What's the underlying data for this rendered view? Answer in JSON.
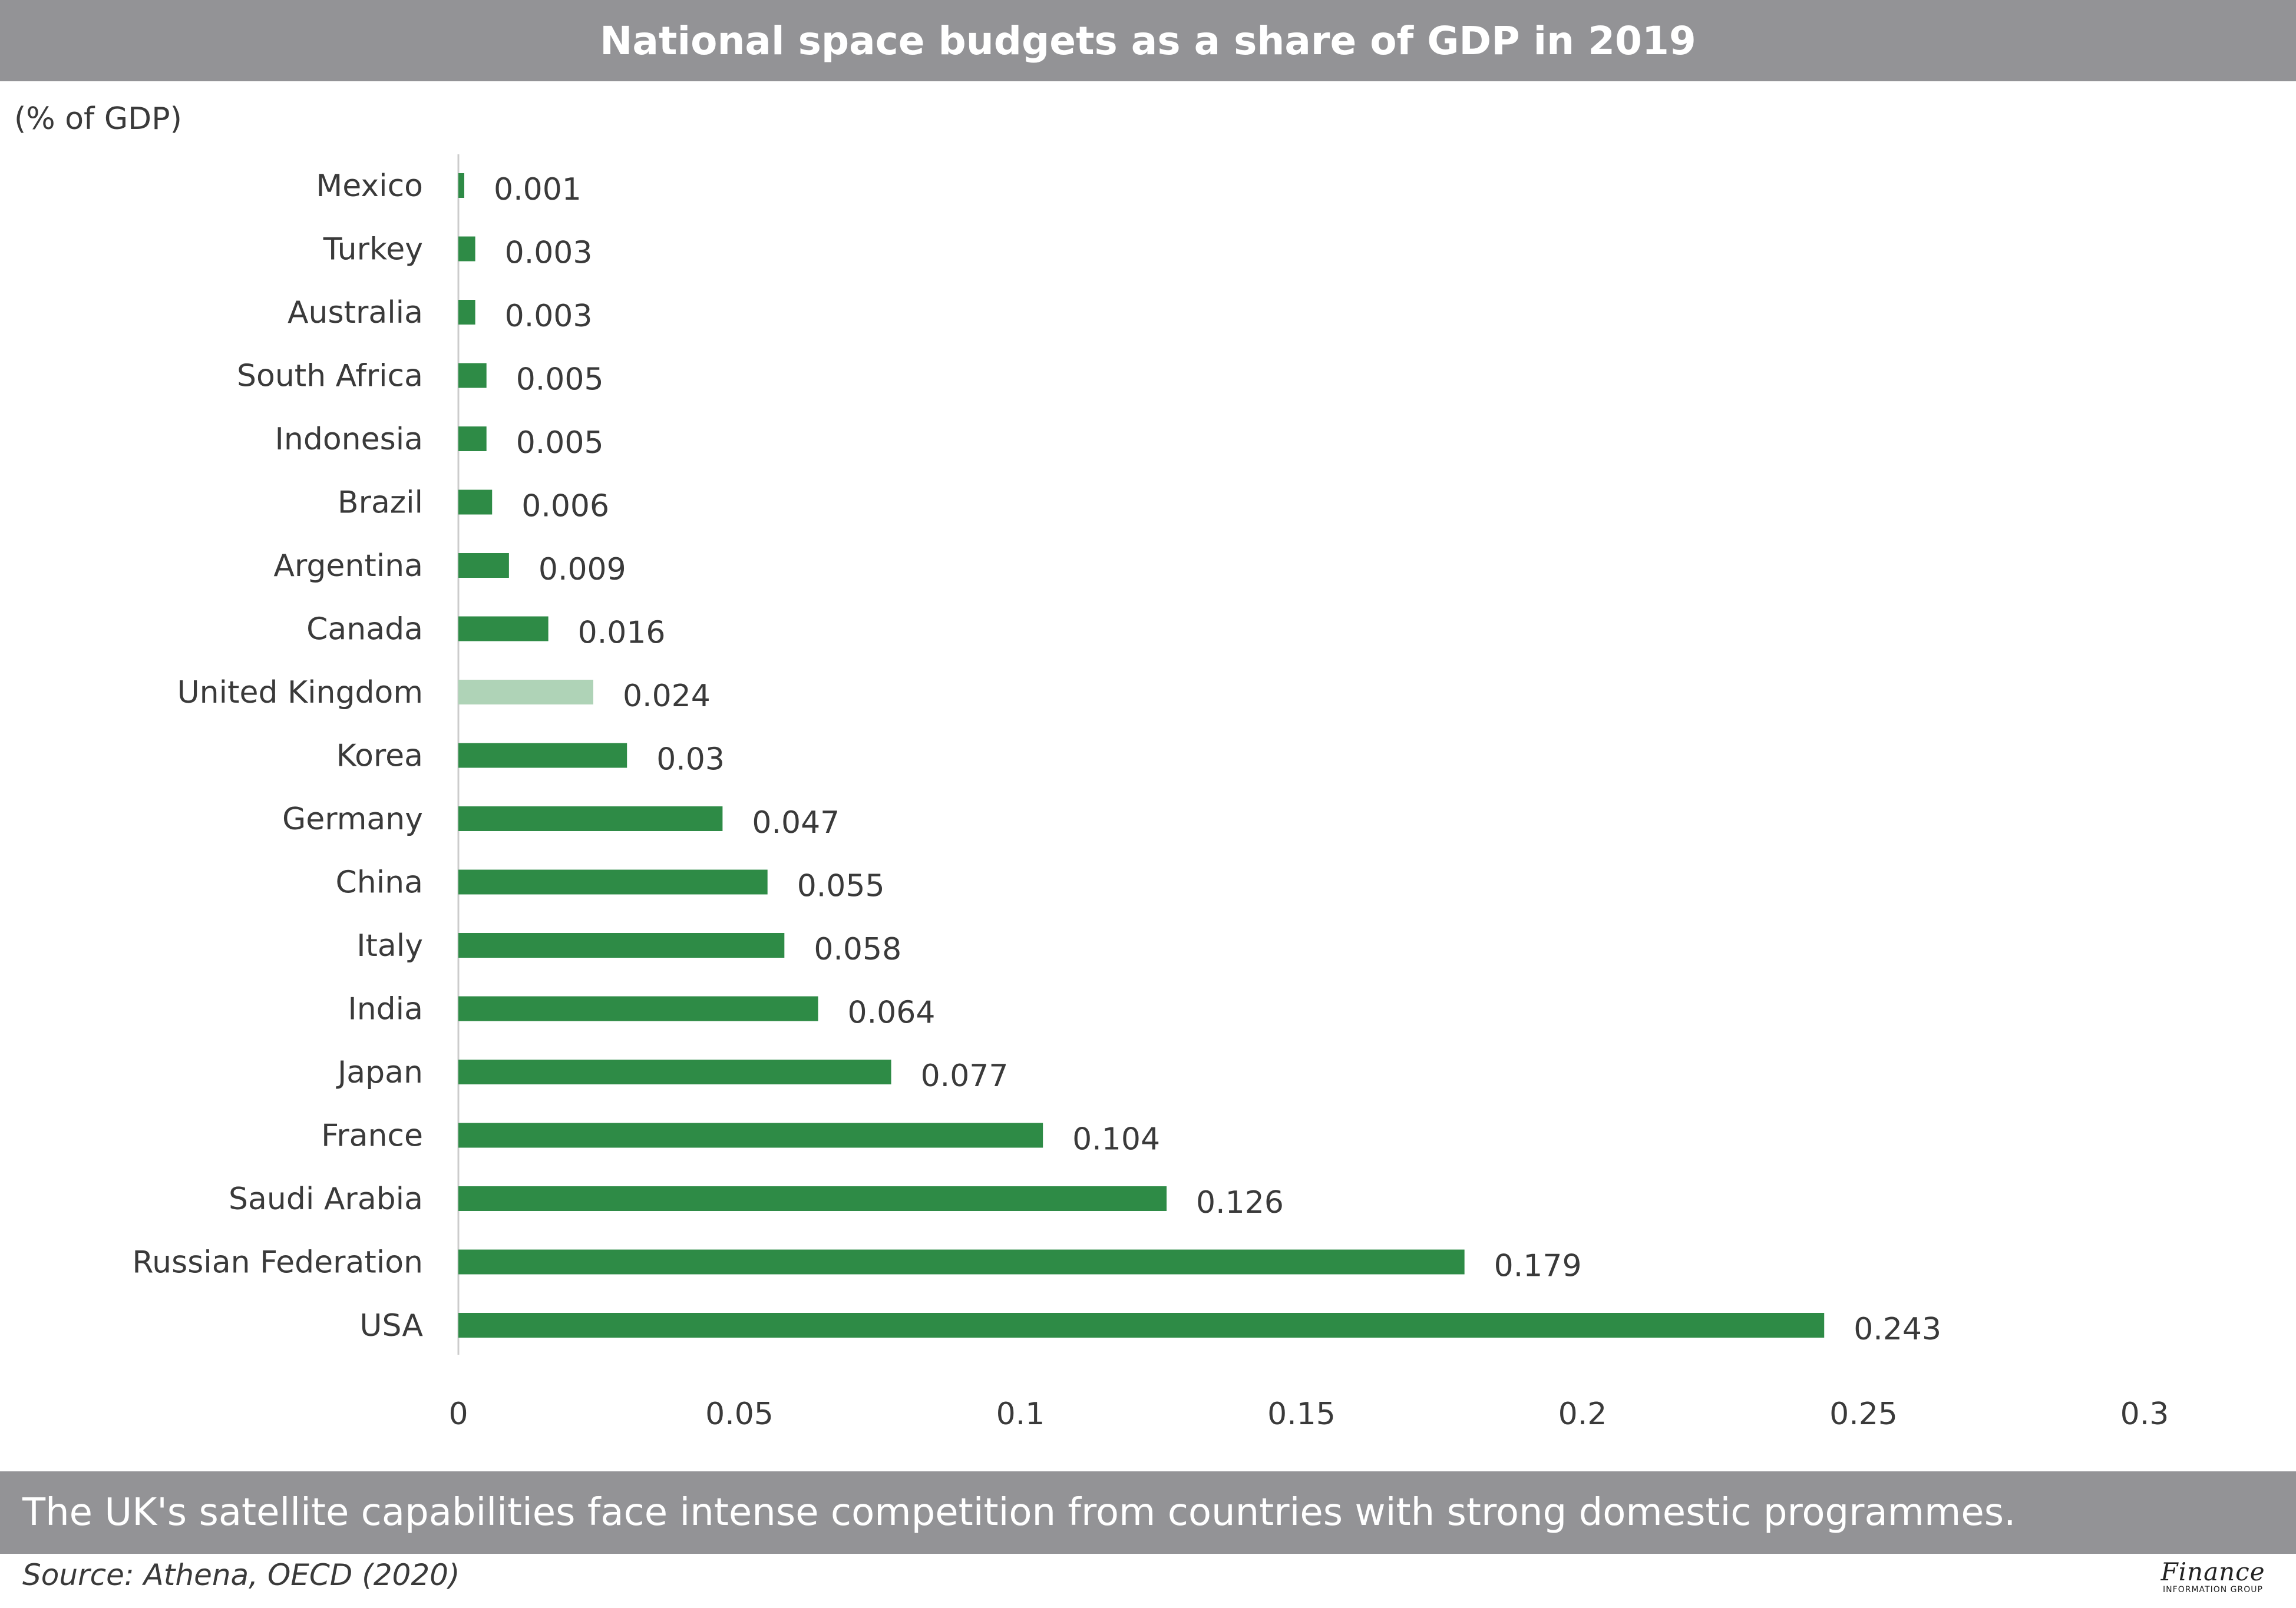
{
  "header": {
    "title": "National space budgets as a share of GDP in 2019"
  },
  "footer": {
    "caption": "The UK's satellite capabilities face intense competition from countries with strong domestic programmes.",
    "source": "Source: Athena, OECD (2020)",
    "logo_main": "Finance",
    "logo_sub": "INFORMATION GROUP"
  },
  "colors": {
    "bar": "#2e8b46",
    "highlight": "#afd3b7",
    "band": "#939396"
  },
  "chart_data": {
    "type": "bar",
    "orientation": "horizontal",
    "title": "National space budgets as a share of GDP in 2019",
    "ylabel": "(% of GDP)",
    "xlabel": "",
    "xlim": [
      0,
      0.3
    ],
    "xticks": [
      "0",
      "0.05",
      "0.1",
      "0.15",
      "0.2",
      "0.25",
      "0.3"
    ],
    "tick_values": [
      0,
      0.05,
      0.1,
      0.15,
      0.2,
      0.25,
      0.3
    ],
    "highlight": "United Kingdom",
    "categories": [
      "Mexico",
      "Turkey",
      "Australia",
      "South Africa",
      "Indonesia",
      "Brazil",
      "Argentina",
      "Canada",
      "United Kingdom",
      "Korea",
      "Germany",
      "China",
      "Italy",
      "India",
      "Japan",
      "France",
      "Saudi Arabia",
      "Russian Federation",
      "USA"
    ],
    "values": [
      0.001,
      0.003,
      0.003,
      0.005,
      0.005,
      0.006,
      0.009,
      0.016,
      0.024,
      0.03,
      0.047,
      0.055,
      0.058,
      0.064,
      0.077,
      0.104,
      0.126,
      0.179,
      0.243
    ],
    "labels": [
      "0.001",
      "0.003",
      "0.003",
      "0.005",
      "0.005",
      "0.006",
      "0.009",
      "0.016",
      "0.024",
      "0.03",
      "0.047",
      "0.055",
      "0.058",
      "0.064",
      "0.077",
      "0.104",
      "0.126",
      "0.179",
      "0.243"
    ]
  }
}
